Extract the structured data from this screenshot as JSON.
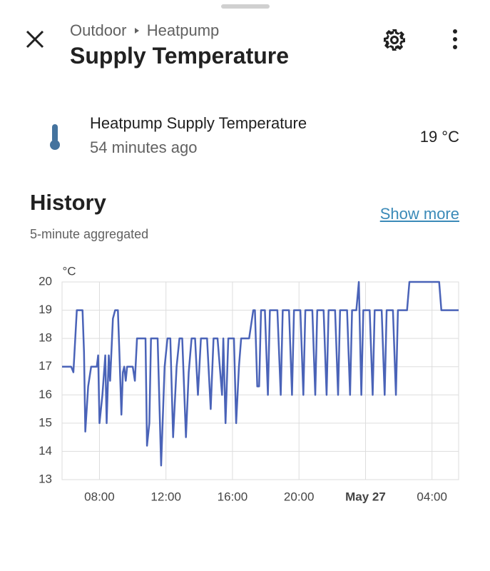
{
  "header": {
    "breadcrumb": [
      "Outdoor",
      "Heatpump"
    ],
    "title": "Supply Temperature"
  },
  "entity": {
    "name": "Heatpump Supply Temperature",
    "last_changed": "54 minutes ago",
    "state": "19 °C"
  },
  "history": {
    "title": "History",
    "show_more": "Show more",
    "subtitle": "5-minute aggregated"
  },
  "chart_data": {
    "type": "line",
    "y_label": "°C",
    "color": "#4a63b8",
    "grid": true,
    "xlim": [
      5.75,
      29.6
    ],
    "ylim": [
      13,
      20
    ],
    "xticks": [
      {
        "value": 8,
        "label": "08:00"
      },
      {
        "value": 12,
        "label": "12:00"
      },
      {
        "value": 16,
        "label": "16:00"
      },
      {
        "value": 20,
        "label": "20:00"
      },
      {
        "value": 24,
        "label": "May 27"
      },
      {
        "value": 28,
        "label": "04:00"
      }
    ],
    "yticks": [
      13,
      14,
      15,
      16,
      17,
      18,
      19,
      20
    ],
    "x": [
      5.75,
      6.3,
      6.43,
      6.64,
      6.98,
      7.07,
      7.15,
      7.32,
      7.5,
      7.84,
      7.92,
      8.0,
      8.18,
      8.35,
      8.43,
      8.56,
      8.64,
      8.81,
      8.94,
      9.11,
      9.2,
      9.32,
      9.41,
      9.49,
      9.58,
      9.66,
      10.0,
      10.13,
      10.26,
      10.77,
      10.86,
      11.0,
      11.1,
      11.5,
      11.71,
      11.92,
      12.09,
      12.26,
      12.43,
      12.64,
      12.81,
      12.98,
      13.2,
      13.37,
      13.54,
      13.75,
      13.92,
      14.1,
      14.47,
      14.69,
      14.86,
      15.1,
      15.37,
      15.45,
      15.58,
      15.75,
      16.09,
      16.22,
      16.39,
      16.52,
      17.0,
      17.25,
      17.35,
      17.49,
      17.6,
      17.72,
      17.95,
      18.13,
      18.25,
      18.7,
      18.9,
      19.02,
      19.4,
      19.58,
      19.7,
      20.08,
      20.26,
      20.38,
      20.8,
      20.98,
      21.1,
      21.48,
      21.66,
      21.78,
      22.17,
      22.35,
      22.47,
      22.89,
      23.07,
      23.19,
      23.45,
      23.6,
      23.75,
      23.87,
      24.25,
      24.43,
      24.55,
      24.97,
      25.15,
      25.27,
      25.65,
      25.83,
      25.95,
      26.5,
      26.64,
      28.43,
      28.56,
      29.6
    ],
    "values": [
      17,
      17,
      16.8,
      19,
      19,
      17.5,
      14.7,
      16.3,
      17,
      17,
      17.4,
      15,
      16,
      17.4,
      15,
      17.4,
      16.5,
      18.7,
      19,
      19,
      17.5,
      15.3,
      16.8,
      17,
      16.5,
      17,
      17,
      16.5,
      18,
      18,
      14.2,
      15,
      18,
      18,
      13.5,
      17,
      18,
      18,
      14.5,
      17,
      18,
      18,
      14.5,
      16.8,
      18,
      18,
      16,
      18,
      18,
      15.5,
      18,
      18,
      16,
      18,
      15,
      18,
      18,
      15,
      17,
      18,
      18,
      19,
      19,
      16.3,
      16.3,
      19,
      19,
      16,
      19,
      19,
      16,
      19,
      19,
      16,
      19,
      19,
      16,
      19,
      19,
      16,
      19,
      19,
      16,
      19,
      19,
      16,
      19,
      19,
      16,
      19,
      19,
      20,
      16,
      19,
      19,
      16,
      19,
      19,
      16,
      19,
      19,
      16,
      19,
      19,
      20,
      20,
      19,
      19
    ]
  }
}
